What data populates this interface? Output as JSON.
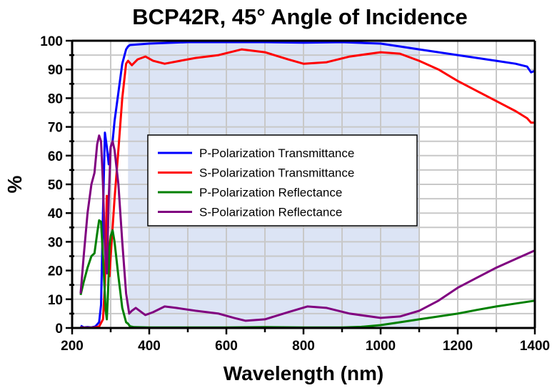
{
  "chart_data": {
    "type": "line",
    "title": "BCP42R, 45° Angle of Incidence",
    "xlabel": "Wavelength (nm)",
    "ylabel": "%",
    "xlim": [
      200,
      1400
    ],
    "ylim": [
      0,
      100
    ],
    "xticks": [
      200,
      400,
      600,
      800,
      1000,
      1200,
      1400
    ],
    "xtick_labels": [
      "200",
      "400",
      "600",
      "800",
      "1000",
      "1200",
      "1400"
    ],
    "yticks": [
      0,
      10,
      20,
      30,
      40,
      50,
      60,
      70,
      80,
      90,
      100
    ],
    "ytick_labels": [
      "0",
      "10",
      "20",
      "30",
      "40",
      "50",
      "60",
      "70",
      "80",
      "90",
      "100"
    ],
    "grid": true,
    "highlight_band": {
      "x_start": 345,
      "x_end": 1100,
      "color": "#dce4f5"
    },
    "legend_position": "center-left",
    "series": [
      {
        "name": "P-Polarization Transmittance",
        "color": "#0000ff",
        "x": [
          222,
          230,
          240,
          250,
          260,
          270,
          275,
          280,
          285,
          290,
          295,
          300,
          305,
          310,
          320,
          330,
          340,
          345,
          350,
          400,
          500,
          600,
          700,
          800,
          900,
          1000,
          1050,
          1100,
          1150,
          1200,
          1250,
          1300,
          1350,
          1380,
          1390,
          1400
        ],
        "y": [
          0.8,
          0.2,
          0.3,
          0.2,
          0.5,
          2,
          8,
          40,
          68,
          63,
          57,
          63,
          65,
          72,
          82,
          92,
          97,
          98,
          98.5,
          99,
          99.5,
          99.5,
          99.5,
          99.3,
          99.5,
          99,
          98,
          97,
          96,
          95,
          94,
          93,
          92,
          91,
          89,
          89.5
        ]
      },
      {
        "name": "S-Polarization Transmittance",
        "color": "#ff0000",
        "x": [
          222,
          230,
          240,
          250,
          260,
          270,
          280,
          285,
          290,
          293,
          297,
          300,
          305,
          310,
          320,
          330,
          340,
          345,
          355,
          370,
          390,
          410,
          440,
          480,
          520,
          580,
          640,
          700,
          760,
          800,
          860,
          920,
          1000,
          1050,
          1100,
          1150,
          1200,
          1250,
          1300,
          1350,
          1380,
          1390,
          1400
        ],
        "y": [
          0.2,
          0.1,
          0.1,
          0.1,
          0.2,
          0.5,
          3,
          15,
          46,
          30,
          18,
          25,
          35,
          45,
          62,
          80,
          92,
          93,
          91.5,
          93.5,
          94.5,
          93,
          92,
          93,
          94,
          95,
          97,
          96,
          93.5,
          92,
          92.5,
          94.5,
          96,
          95.5,
          93,
          90,
          86,
          82.5,
          79,
          75.5,
          73,
          71.5,
          71.5
        ]
      },
      {
        "name": "P-Polarization Reflectance",
        "color": "#008000",
        "x": [
          222,
          230,
          240,
          250,
          258,
          265,
          270,
          275,
          280,
          283,
          287,
          290,
          293,
          297,
          300,
          305,
          310,
          320,
          330,
          340,
          345,
          350,
          360,
          400,
          500,
          600,
          700,
          800,
          900,
          950,
          1000,
          1050,
          1100,
          1150,
          1200,
          1250,
          1300,
          1350,
          1400
        ],
        "y": [
          11.5,
          16,
          21,
          25,
          26,
          33,
          37.5,
          37,
          25,
          17,
          6,
          3,
          12,
          28,
          32,
          34,
          30,
          18,
          7,
          2,
          1.5,
          0.6,
          0.3,
          0.2,
          0.2,
          0.2,
          0.3,
          0.2,
          0.2,
          0.4,
          1,
          2,
          3,
          4,
          5,
          6.3,
          7.5,
          8.5,
          9.5
        ]
      },
      {
        "name": "S-Polarization Reflectance",
        "color": "#800080",
        "x": [
          222,
          230,
          240,
          250,
          258,
          265,
          270,
          275,
          280,
          285,
          290,
          295,
          300,
          305,
          310,
          320,
          330,
          340,
          348,
          355,
          365,
          375,
          390,
          410,
          440,
          470,
          520,
          580,
          620,
          650,
          700,
          760,
          810,
          860,
          920,
          1000,
          1050,
          1100,
          1150,
          1200,
          1250,
          1300,
          1350,
          1400
        ],
        "y": [
          12,
          25,
          40,
          50,
          54,
          64,
          67,
          65,
          50,
          28,
          19,
          45,
          63,
          65,
          62,
          50,
          30,
          12,
          5,
          6,
          7,
          6,
          4.5,
          5.5,
          7.5,
          7,
          6,
          5,
          3.5,
          2.5,
          3,
          5.5,
          7.5,
          7,
          5,
          3.5,
          4,
          6,
          9.5,
          14,
          17.5,
          21,
          24,
          27
        ]
      }
    ]
  }
}
